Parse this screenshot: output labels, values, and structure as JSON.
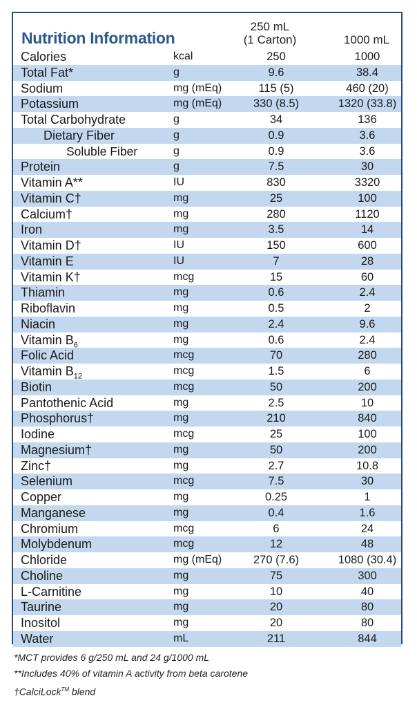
{
  "header": {
    "title": "Nutrition Information",
    "col1_line1": "250 mL",
    "col1_line2": "(1 Carton)",
    "col2": "1000 mL"
  },
  "rows": [
    {
      "name": "Calories",
      "unit": "kcal",
      "v250": "250",
      "v1000": "1000",
      "indent": 0
    },
    {
      "name": "Total Fat*",
      "unit": "g",
      "v250": "9.6",
      "v1000": "38.4",
      "indent": 0
    },
    {
      "name": "Sodium",
      "unit": "mg (mEq)",
      "v250": "115 (5)",
      "v1000": "460 (20)",
      "indent": 0
    },
    {
      "name": "Potassium",
      "unit": "mg (mEq)",
      "v250": "330 (8.5)",
      "v1000": "1320 (33.8)",
      "indent": 0
    },
    {
      "name": "Total Carbohydrate",
      "unit": "g",
      "v250": "34",
      "v1000": "136",
      "indent": 0
    },
    {
      "name": "Dietary Fiber",
      "unit": "g",
      "v250": "0.9",
      "v1000": "3.6",
      "indent": 1
    },
    {
      "name": "Soluble Fiber",
      "unit": "g",
      "v250": "0.9",
      "v1000": "3.6",
      "indent": 2
    },
    {
      "name": "Protein",
      "unit": "g",
      "v250": "7.5",
      "v1000": "30",
      "indent": 0
    },
    {
      "name": "Vitamin A**",
      "unit": "IU",
      "v250": "830",
      "v1000": "3320",
      "indent": 0
    },
    {
      "name": "Vitamin C†",
      "unit": "mg",
      "v250": "25",
      "v1000": "100",
      "indent": 0
    },
    {
      "name": "Calcium†",
      "unit": "mg",
      "v250": "280",
      "v1000": "1120",
      "indent": 0
    },
    {
      "name": "Iron",
      "unit": "mg",
      "v250": "3.5",
      "v1000": "14",
      "indent": 0
    },
    {
      "name": "Vitamin D†",
      "unit": "IU",
      "v250": "150",
      "v1000": "600",
      "indent": 0
    },
    {
      "name": "Vitamin E",
      "unit": "IU",
      "v250": "7",
      "v1000": "28",
      "indent": 0
    },
    {
      "name": "Vitamin K†",
      "unit": "mcg",
      "v250": "15",
      "v1000": "60",
      "indent": 0
    },
    {
      "name": "Thiamin",
      "unit": "mg",
      "v250": "0.6",
      "v1000": "2.4",
      "indent": 0
    },
    {
      "name": "Riboflavin",
      "unit": "mg",
      "v250": "0.5",
      "v1000": "2",
      "indent": 0
    },
    {
      "name": "Niacin",
      "unit": "mg",
      "v250": "2.4",
      "v1000": "9.6",
      "indent": 0
    },
    {
      "name": "Vitamin B",
      "sub": "6",
      "unit": "mg",
      "v250": "0.6",
      "v1000": "2.4",
      "indent": 0
    },
    {
      "name": "Folic Acid",
      "unit": "mcg",
      "v250": "70",
      "v1000": "280",
      "indent": 0
    },
    {
      "name": "Vitamin B",
      "sub": "12",
      "unit": "mcg",
      "v250": "1.5",
      "v1000": "6",
      "indent": 0
    },
    {
      "name": "Biotin",
      "unit": "mcg",
      "v250": "50",
      "v1000": "200",
      "indent": 0
    },
    {
      "name": "Pantothenic Acid",
      "unit": "mg",
      "v250": "2.5",
      "v1000": "10",
      "indent": 0
    },
    {
      "name": "Phosphorus†",
      "unit": "mg",
      "v250": "210",
      "v1000": "840",
      "indent": 0
    },
    {
      "name": "Iodine",
      "unit": "mcg",
      "v250": "25",
      "v1000": "100",
      "indent": 0
    },
    {
      "name": "Magnesium†",
      "unit": "mg",
      "v250": "50",
      "v1000": "200",
      "indent": 0
    },
    {
      "name": "Zinc†",
      "unit": "mg",
      "v250": "2.7",
      "v1000": "10.8",
      "indent": 0
    },
    {
      "name": "Selenium",
      "unit": "mcg",
      "v250": "7.5",
      "v1000": "30",
      "indent": 0
    },
    {
      "name": "Copper",
      "unit": "mg",
      "v250": "0.25",
      "v1000": "1",
      "indent": 0
    },
    {
      "name": "Manganese",
      "unit": "mg",
      "v250": "0.4",
      "v1000": "1.6",
      "indent": 0
    },
    {
      "name": "Chromium",
      "unit": "mcg",
      "v250": "6",
      "v1000": "24",
      "indent": 0
    },
    {
      "name": "Molybdenum",
      "unit": "mcg",
      "v250": "12",
      "v1000": "48",
      "indent": 0
    },
    {
      "name": "Chloride",
      "unit": "mg (mEq)",
      "v250": "270 (7.6)",
      "v1000": "1080 (30.4)",
      "indent": 0
    },
    {
      "name": "Choline",
      "unit": "mg",
      "v250": "75",
      "v1000": "300",
      "indent": 0
    },
    {
      "name": "L-Carnitine",
      "unit": "mg",
      "v250": "10",
      "v1000": "40",
      "indent": 0
    },
    {
      "name": "Taurine",
      "unit": "mg",
      "v250": "20",
      "v1000": "80",
      "indent": 0
    },
    {
      "name": "Inositol",
      "unit": "mg",
      "v250": "20",
      "v1000": "80",
      "indent": 0
    },
    {
      "name": "Water",
      "unit": "mL",
      "v250": "211",
      "v1000": "844",
      "indent": 0
    }
  ],
  "footnotes": {
    "mct": "*MCT provides 6 g/250 mL and 24 g/1000 mL",
    "vitamin_a": "**Includes 40% of vitamin A activity from beta carotene",
    "calcilock": "†CalciLock",
    "calcilock_tm": "TM",
    "calcilock_suffix": " blend"
  },
  "colors": {
    "title": "#2c5a8c",
    "shade": "#c3d8ee",
    "border": "#2a4a78"
  }
}
